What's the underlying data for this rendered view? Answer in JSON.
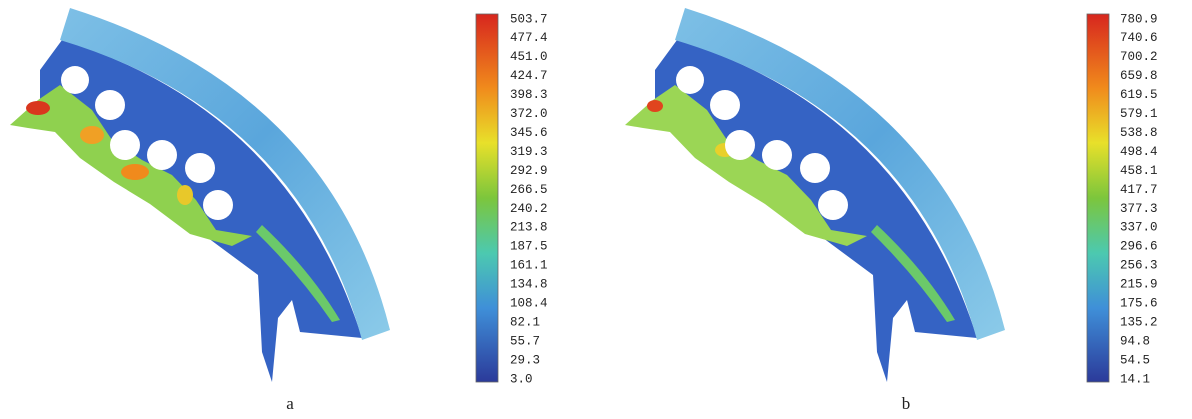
{
  "panels": [
    {
      "caption": "a",
      "scale": [
        "503.7",
        "477.4",
        "451.0",
        "424.7",
        "398.3",
        "372.0",
        "345.6",
        "319.3",
        "292.9",
        "266.5",
        "240.2",
        "213.8",
        "187.5",
        "161.1",
        "134.8",
        "108.4",
        "82.1",
        "55.7",
        "29.3",
        "3.0"
      ]
    },
    {
      "caption": "b",
      "scale": [
        "780.9",
        "740.6",
        "700.2",
        "659.8",
        "619.5",
        "579.1",
        "538.8",
        "498.4",
        "458.1",
        "417.7",
        "377.3",
        "337.0",
        "296.6",
        "256.3",
        "215.9",
        "175.6",
        "135.2",
        "94.8",
        "54.5",
        "14.1"
      ]
    }
  ]
}
